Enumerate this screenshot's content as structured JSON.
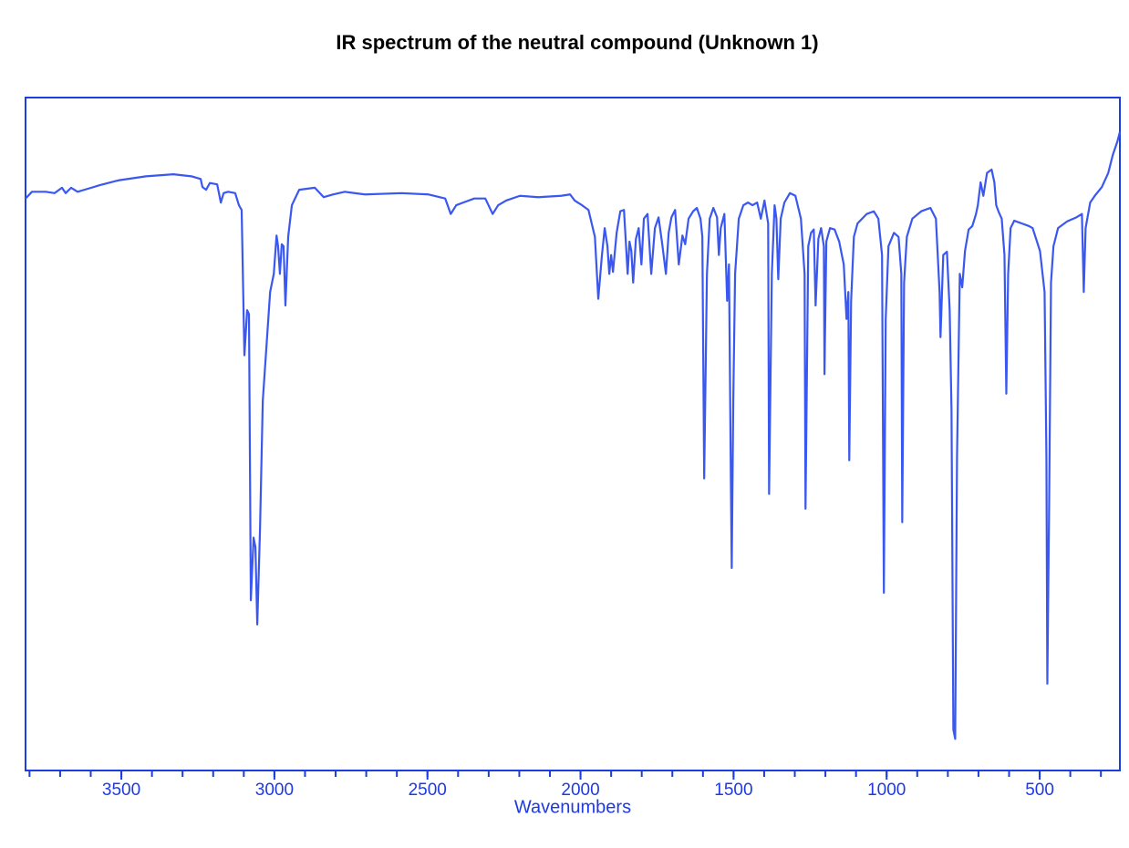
{
  "chart_data": {
    "type": "line",
    "title": "IR spectrum of the neutral compound (Unknown 1)",
    "x_label": "Wavenumbers",
    "xlim": [
      3813,
      238
    ],
    "ylim": [
      0,
      100
    ],
    "xticks": [
      3500,
      3000,
      2500,
      2000,
      1500,
      1000,
      500
    ],
    "xminorticks": [
      3800,
      3700,
      3600,
      3500,
      3400,
      3300,
      3200,
      3100,
      3000,
      2900,
      2800,
      2700,
      2600,
      2500,
      2400,
      2300,
      2200,
      2100,
      2000,
      1900,
      1800,
      1700,
      1600,
      1500,
      1400,
      1300,
      1200,
      1100,
      1000,
      900,
      800,
      700,
      600,
      500,
      400,
      300
    ],
    "axis_color": "#1a3fe0",
    "series": [
      {
        "color": "#3a58f0",
        "x": [
          3813,
          3792,
          3747,
          3718,
          3694,
          3682,
          3664,
          3643,
          3613,
          3569,
          3509,
          3420,
          3330,
          3271,
          3241,
          3235,
          3223,
          3211,
          3187,
          3175,
          3166,
          3151,
          3128,
          3116,
          3107,
          3098,
          3089,
          3083,
          3077,
          3068,
          3062,
          3056,
          3047,
          3038,
          3026,
          3014,
          3002,
          2993,
          2988,
          2982,
          2976,
          2970,
          2964,
          2955,
          2943,
          2919,
          2868,
          2839,
          2809,
          2770,
          2704,
          2585,
          2496,
          2442,
          2424,
          2406,
          2383,
          2347,
          2311,
          2287,
          2269,
          2243,
          2198,
          2138,
          2064,
          2034,
          2019,
          1995,
          1974,
          1953,
          1942,
          1930,
          1921,
          1912,
          1906,
          1900,
          1894,
          1882,
          1870,
          1858,
          1846,
          1840,
          1834,
          1828,
          1819,
          1810,
          1801,
          1793,
          1781,
          1769,
          1757,
          1745,
          1733,
          1721,
          1712,
          1703,
          1691,
          1679,
          1667,
          1658,
          1647,
          1632,
          1620,
          1608,
          1602,
          1596,
          1587,
          1578,
          1566,
          1554,
          1548,
          1542,
          1530,
          1521,
          1515,
          1509,
          1506,
          1501,
          1495,
          1483,
          1468,
          1453,
          1438,
          1423,
          1411,
          1399,
          1387,
          1384,
          1375,
          1366,
          1360,
          1354,
          1346,
          1334,
          1316,
          1298,
          1280,
          1268,
          1265,
          1256,
          1247,
          1238,
          1232,
          1223,
          1214,
          1205,
          1203,
          1197,
          1185,
          1170,
          1155,
          1140,
          1131,
          1125,
          1122,
          1116,
          1107,
          1095,
          1065,
          1042,
          1027,
          1015,
          1009,
          1003,
          994,
          976,
          961,
          952,
          949,
          943,
          934,
          916,
          887,
          857,
          839,
          827,
          824,
          815,
          803,
          794,
          788,
          782,
          776,
          770,
          761,
          753,
          744,
          732,
          720,
          708,
          702,
          693,
          684,
          672,
          657,
          648,
          642,
          633,
          624,
          615,
          609,
          603,
          595,
          583,
          559,
          535,
          523,
          499,
          484,
          478,
          475,
          469,
          463,
          455,
          440,
          410,
          380,
          362,
          356,
          350,
          335,
          320,
          297,
          276,
          261,
          246,
          238
        ],
        "values": [
          85.0,
          86.0,
          86.0,
          85.8,
          86.6,
          85.8,
          86.6,
          86.0,
          86.4,
          87.0,
          87.7,
          88.3,
          88.6,
          88.3,
          87.9,
          86.7,
          86.3,
          87.3,
          87.1,
          84.4,
          85.8,
          86.0,
          85.8,
          84.0,
          83.3,
          61.7,
          68.4,
          67.8,
          25.3,
          34.6,
          33.2,
          21.7,
          35.9,
          54.9,
          63.0,
          71.1,
          73.8,
          79.5,
          77.9,
          73.8,
          78.2,
          77.9,
          69.1,
          79.3,
          84.0,
          86.3,
          86.6,
          85.2,
          85.6,
          86.0,
          85.6,
          85.8,
          85.6,
          85.0,
          82.7,
          84.0,
          84.4,
          85.0,
          85.0,
          82.7,
          84.0,
          84.7,
          85.4,
          85.2,
          85.4,
          85.6,
          84.7,
          84.0,
          83.3,
          79.3,
          70.1,
          76.6,
          80.6,
          77.9,
          73.8,
          76.6,
          74.1,
          79.9,
          83.1,
          83.3,
          73.8,
          78.6,
          77.2,
          72.5,
          79.0,
          80.6,
          75.2,
          82.0,
          82.7,
          73.8,
          80.6,
          82.2,
          78.2,
          73.8,
          79.9,
          82.2,
          83.3,
          75.2,
          79.5,
          78.2,
          82.0,
          83.1,
          83.6,
          82.0,
          79.3,
          43.4,
          73.8,
          82.0,
          83.6,
          82.2,
          76.6,
          80.6,
          82.7,
          69.8,
          75.2,
          44.0,
          30.1,
          54.9,
          73.8,
          82.0,
          84.0,
          84.4,
          84.0,
          84.4,
          82.0,
          84.7,
          81.3,
          41.1,
          73.8,
          84.0,
          82.0,
          73.0,
          82.0,
          84.4,
          85.8,
          85.4,
          82.0,
          73.8,
          38.9,
          77.9,
          79.9,
          80.4,
          69.1,
          79.0,
          80.6,
          77.9,
          58.9,
          78.6,
          80.6,
          80.4,
          78.6,
          75.2,
          67.1,
          71.1,
          46.1,
          69.8,
          79.3,
          81.3,
          82.7,
          83.1,
          82.0,
          76.6,
          26.4,
          67.1,
          77.9,
          79.9,
          79.3,
          73.8,
          36.9,
          72.5,
          79.3,
          82.0,
          83.1,
          83.6,
          82.0,
          71.1,
          64.4,
          76.6,
          77.1,
          68.4,
          53.5,
          6.1,
          4.7,
          46.7,
          73.8,
          71.8,
          77.2,
          80.4,
          80.9,
          82.7,
          84.0,
          87.4,
          85.4,
          88.8,
          89.3,
          87.4,
          84.0,
          82.9,
          82.0,
          76.6,
          56.0,
          73.8,
          80.6,
          81.7,
          81.3,
          80.9,
          80.6,
          77.2,
          71.1,
          46.7,
          12.9,
          40.0,
          72.5,
          77.9,
          80.6,
          81.6,
          82.2,
          82.7,
          71.1,
          80.6,
          84.4,
          85.4,
          86.7,
          88.8,
          91.5,
          93.5,
          94.9
        ]
      }
    ]
  }
}
